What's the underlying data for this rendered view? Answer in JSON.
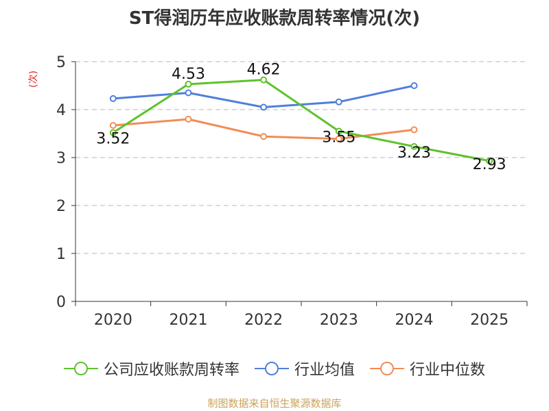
{
  "title": "ST得润历年应收账款周转率情况(次)",
  "source": "制图数据来自恒生聚源数据库",
  "colors": {
    "company": "#5ec22b",
    "industry_avg": "#4f7fdc",
    "industry_median": "#f28c56",
    "axis": "#333333",
    "grid": "#c8c8c8",
    "ylabel": "#e0221e"
  },
  "chart_data": {
    "type": "line",
    "title": "ST得润历年应收账款周转率情况(次)",
    "xlabel": "",
    "ylabel": "(次)",
    "categories": [
      "2020",
      "2021",
      "2022",
      "2023",
      "2024",
      "2025"
    ],
    "ylim": [
      0,
      5
    ],
    "yticks": [
      0,
      1,
      2,
      3,
      4,
      5
    ],
    "grid": true,
    "legend": "bottom",
    "series": [
      {
        "name": "公司应收账款周转率",
        "key": "company",
        "values": [
          3.52,
          4.53,
          4.62,
          3.55,
          3.23,
          2.93
        ],
        "labels": [
          "3.52",
          "4.53",
          "4.62",
          "3.55",
          "3.23",
          "2.93"
        ]
      },
      {
        "name": "行业均值",
        "key": "industry_avg",
        "values": [
          4.23,
          4.35,
          4.05,
          4.16,
          4.5,
          null
        ]
      },
      {
        "name": "行业中位数",
        "key": "industry_median",
        "values": [
          3.67,
          3.8,
          3.44,
          3.39,
          3.58,
          null
        ]
      }
    ]
  }
}
